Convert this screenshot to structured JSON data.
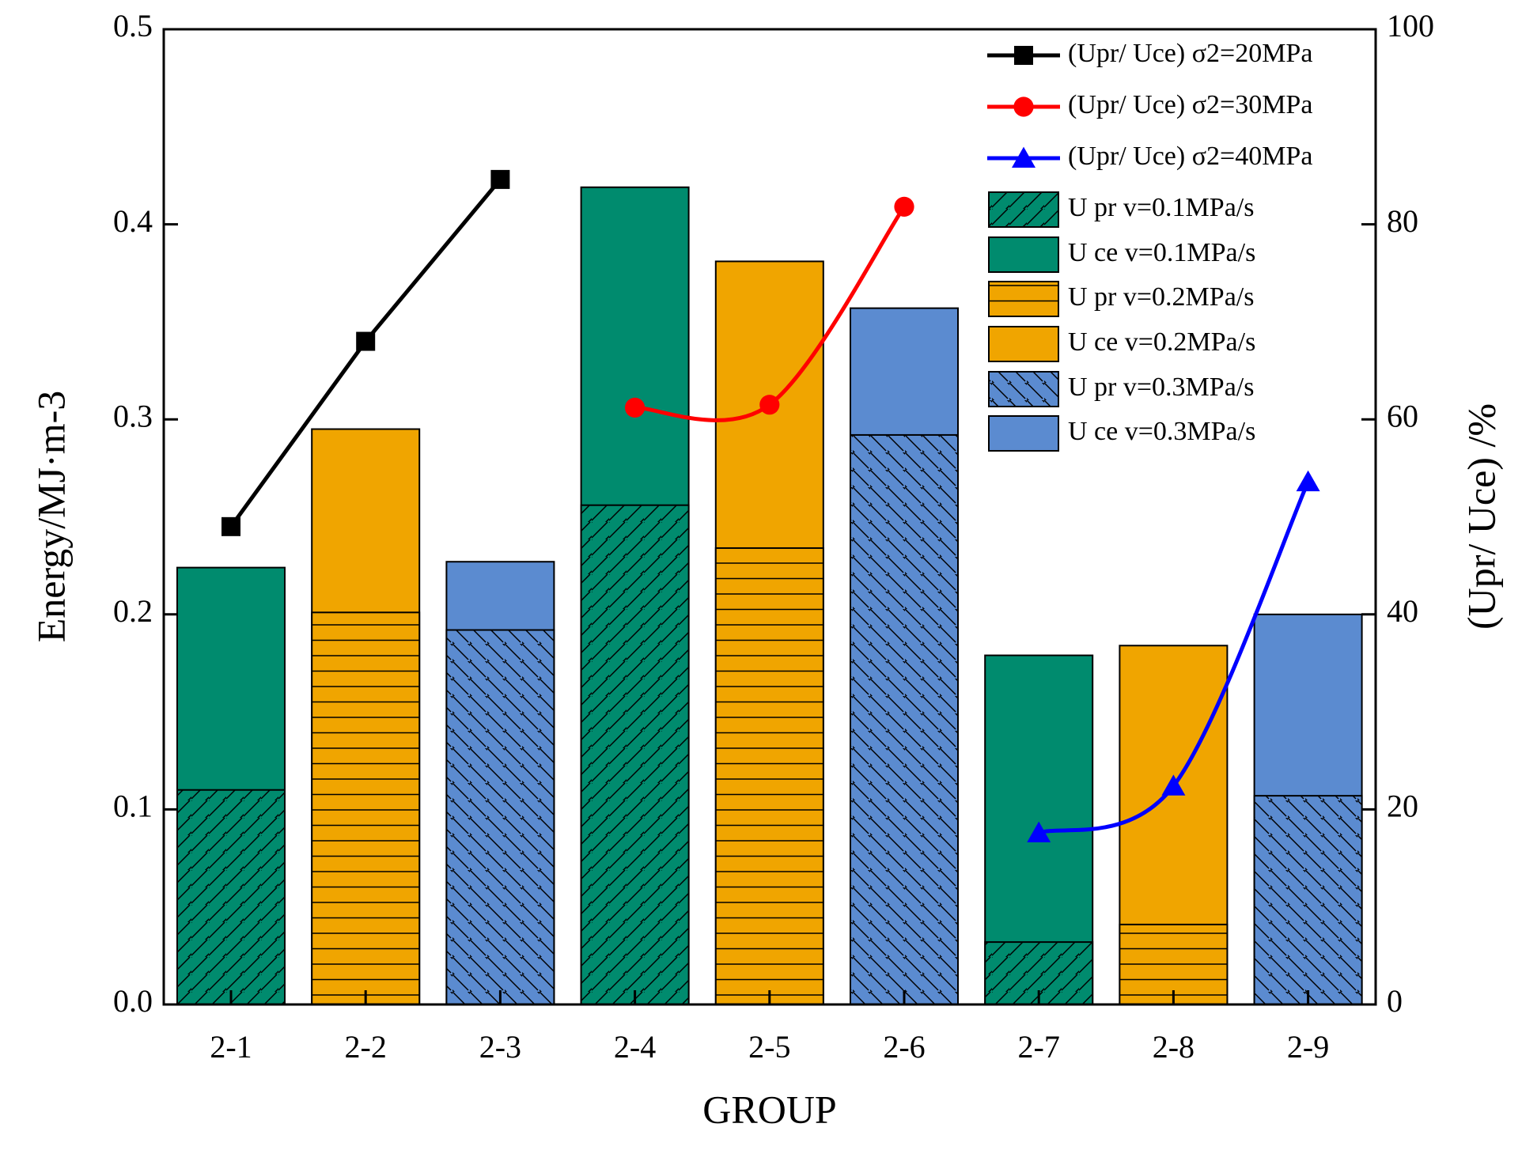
{
  "chart_data": {
    "type": "bar",
    "xlabel": "GROUP",
    "ylabel": "Energy/MJ·m-3",
    "y2label": "(Upr/ Uce) /%",
    "categories": [
      "2-1",
      "2-2",
      "2-3",
      "2-4",
      "2-5",
      "2-6",
      "2-7",
      "2-8",
      "2-9"
    ],
    "ylim": [
      0,
      0.5
    ],
    "yticks": [
      {
        "value": 0,
        "label": "0.0"
      },
      0.1,
      0.2,
      0.3,
      0.4,
      0.5
    ],
    "y2lim": [
      0,
      100
    ],
    "y2ticks": [
      0,
      20,
      40,
      60,
      80,
      100
    ],
    "grid": false,
    "legend": "upper right",
    "series": [
      {
        "name": "(Upr/ Uce) σ2=20MPa",
        "type": "line",
        "axis": "y2",
        "color": "#000000",
        "marker": "square",
        "values": [
          49,
          68,
          84.6,
          null,
          null,
          null,
          null,
          null,
          null
        ]
      },
      {
        "name": "(Upr/ Uce) σ2=30MPa",
        "type": "line",
        "axis": "y2",
        "color": "#ff0000",
        "marker": "circle",
        "values": [
          null,
          null,
          null,
          61.2,
          61.5,
          81.8,
          null,
          null,
          null
        ]
      },
      {
        "name": "(Upr/ Uce) σ2=40MPa",
        "type": "line",
        "axis": "y2",
        "color": "#0000ff",
        "marker": "triangle",
        "values": [
          null,
          null,
          null,
          null,
          null,
          null,
          17.6,
          22.4,
          53.6
        ]
      },
      {
        "name": "U pr v=0.1MPa/s",
        "type": "bar",
        "color": "#008b6e",
        "hatch": "/",
        "values": [
          0.11,
          null,
          null,
          0.256,
          null,
          null,
          0.032,
          null,
          null
        ]
      },
      {
        "name": "U ce v=0.1MPa/s",
        "type": "bar",
        "color": "#008b6e",
        "values": [
          0.224,
          null,
          null,
          0.419,
          null,
          null,
          0.179,
          null,
          null
        ]
      },
      {
        "name": "U pr v=0.2MPa/s",
        "type": "bar",
        "color": "#f0a500",
        "hatch": "-",
        "values": [
          null,
          0.201,
          null,
          null,
          0.234,
          null,
          null,
          0.041,
          null
        ]
      },
      {
        "name": "U ce v=0.2MPa/s",
        "type": "bar",
        "color": "#f0a500",
        "values": [
          null,
          0.295,
          null,
          null,
          0.381,
          null,
          null,
          0.184,
          null
        ]
      },
      {
        "name": "U pr v=0.3MPa/s",
        "type": "bar",
        "color": "#5b8bd0",
        "hatch": "\\",
        "values": [
          null,
          null,
          0.192,
          null,
          null,
          0.292,
          null,
          null,
          0.107
        ]
      },
      {
        "name": "U ce v=0.3MPa/s",
        "type": "bar",
        "color": "#5b8bd0",
        "values": [
          null,
          null,
          0.227,
          null,
          null,
          0.357,
          null,
          null,
          0.2
        ]
      }
    ]
  }
}
